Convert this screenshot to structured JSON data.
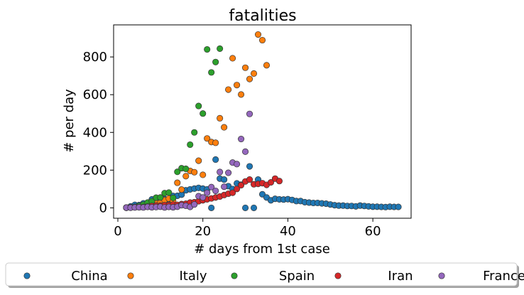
{
  "chart_data": {
    "type": "scatter",
    "title": "fatalities",
    "xlabel": "# days from 1st case",
    "ylabel": "# per day",
    "xlim": [
      -1,
      69
    ],
    "ylim": [
      -55,
      970
    ],
    "xticks": [
      0,
      20,
      40,
      60
    ],
    "yticks": [
      0,
      200,
      400,
      600,
      800
    ],
    "grid": false,
    "legend_placement": "bottom",
    "series": [
      {
        "name": "China",
        "color": "#1f77b4",
        "x": [
          2,
          3,
          4,
          5,
          6,
          7,
          8,
          9,
          10,
          11,
          12,
          13,
          14,
          15,
          16,
          17,
          18,
          19,
          20,
          21,
          22,
          23,
          24,
          25,
          26,
          27,
          28,
          29,
          30,
          31,
          32,
          33,
          34,
          35,
          36,
          37,
          38,
          39,
          40,
          41,
          42,
          43,
          44,
          45,
          46,
          47,
          48,
          49,
          50,
          51,
          52,
          53,
          54,
          55,
          56,
          57,
          58,
          59,
          60,
          61,
          62,
          63,
          64,
          65,
          66
        ],
        "y": [
          1,
          8,
          16,
          15,
          24,
          26,
          45,
          38,
          42,
          46,
          42,
          63,
          64,
          70,
          93,
          98,
          102,
          106,
          102,
          98,
          0,
          256,
          155,
          150,
          115,
          100,
          130,
          123,
          0,
          220,
          0,
          150,
          72,
          55,
          40,
          48,
          45,
          44,
          46,
          42,
          36,
          36,
          30,
          28,
          26,
          26,
          24,
          22,
          18,
          14,
          12,
          12,
          10,
          10,
          8,
          12,
          10,
          8,
          6,
          6,
          5,
          4,
          6,
          5,
          5
        ]
      },
      {
        "name": "Italy",
        "color": "#ff7f0e",
        "x": [
          2,
          3,
          4,
          5,
          6,
          7,
          8,
          9,
          10,
          11,
          12,
          13,
          14,
          15,
          16,
          17,
          18,
          19,
          20,
          21,
          22,
          23,
          24,
          25,
          26,
          27,
          28,
          29,
          30,
          31,
          32,
          33,
          34,
          35
        ],
        "y": [
          1,
          2,
          3,
          7,
          10,
          12,
          11,
          27,
          28,
          41,
          49,
          36,
          133,
          97,
          168,
          196,
          189,
          250,
          175,
          368,
          349,
          345,
          475,
          427,
          627,
          793,
          651,
          601,
          743,
          683,
          712,
          919,
          889,
          756
        ]
      },
      {
        "name": "Spain",
        "color": "#2ca02c",
        "x": [
          2,
          3,
          4,
          5,
          6,
          7,
          8,
          9,
          10,
          11,
          12,
          13,
          14,
          15,
          16,
          17,
          18,
          19,
          20,
          21,
          22,
          23,
          24
        ],
        "y": [
          1,
          3,
          5,
          10,
          17,
          28,
          35,
          54,
          55,
          78,
          81,
          53,
          191,
          210,
          207,
          335,
          400,
          540,
          500,
          840,
          718,
          773,
          844
        ]
      },
      {
        "name": "Iran",
        "color": "#d62728",
        "x": [
          2,
          3,
          4,
          5,
          6,
          7,
          8,
          9,
          10,
          11,
          12,
          13,
          14,
          15,
          16,
          17,
          18,
          19,
          20,
          21,
          22,
          23,
          24,
          25,
          26,
          27,
          28,
          29,
          30,
          31,
          32,
          33,
          34,
          35,
          36,
          37,
          38
        ],
        "y": [
          2,
          2,
          4,
          4,
          4,
          7,
          10,
          12,
          12,
          14,
          15,
          17,
          16,
          20,
          22,
          28,
          30,
          35,
          40,
          45,
          50,
          55,
          60,
          68,
          75,
          80,
          100,
          120,
          140,
          150,
          125,
          127,
          131,
          122,
          135,
          155,
          142
        ]
      },
      {
        "name": "France",
        "color": "#9467bd",
        "x": [
          2,
          3,
          4,
          5,
          6,
          7,
          8,
          9,
          10,
          11,
          12,
          13,
          14,
          15,
          16,
          17,
          18,
          19,
          20,
          21,
          22,
          23,
          24,
          25,
          26,
          27,
          28,
          29,
          30,
          31
        ],
        "y": [
          1,
          1,
          2,
          3,
          2,
          5,
          3,
          4,
          6,
          2,
          5,
          3,
          6,
          14,
          11,
          5,
          18,
          62,
          55,
          80,
          110,
          90,
          190,
          112,
          186,
          240,
          232,
          365,
          298,
          498
        ]
      }
    ]
  }
}
